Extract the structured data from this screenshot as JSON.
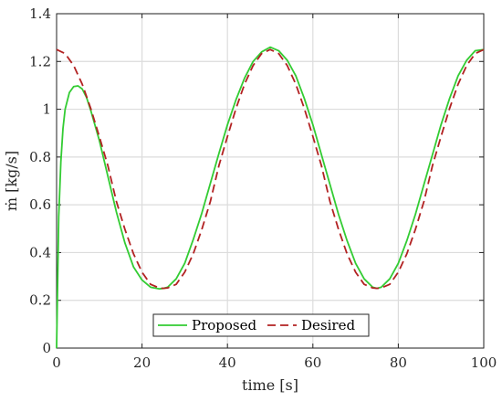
{
  "chart_data": {
    "type": "line",
    "title": "",
    "xlabel": "time [s]",
    "ylabel": "ṁ [kg/s]",
    "xlim": [
      0,
      100
    ],
    "ylim": [
      0,
      1.4
    ],
    "xticks": [
      0,
      20,
      40,
      60,
      80,
      100
    ],
    "yticks": [
      0,
      0.2,
      0.4,
      0.6,
      0.8,
      1,
      1.2,
      1.4
    ],
    "xtick_labels": [
      "0",
      "20",
      "40",
      "60",
      "80",
      "100"
    ],
    "ytick_labels": [
      "0",
      "0.2",
      "0.4",
      "0.6",
      "0.8",
      "1",
      "1.2",
      "1.4"
    ],
    "grid": true,
    "legend_position": "bottom-center",
    "series": [
      {
        "name": "Proposed",
        "color": "#33cc33",
        "dash": "solid",
        "x": [
          0,
          0.5,
          1,
          1.5,
          2,
          3,
          4,
          5,
          6,
          7,
          8,
          10,
          12,
          14,
          16,
          18,
          20,
          22,
          24,
          25,
          26,
          28,
          30,
          32,
          34,
          36,
          38,
          40,
          42,
          44,
          46,
          48,
          50,
          52,
          54,
          56,
          58,
          60,
          62,
          64,
          66,
          68,
          70,
          72,
          74,
          75,
          76,
          78,
          80,
          82,
          84,
          86,
          88,
          90,
          92,
          94,
          96,
          98,
          100
        ],
        "values": [
          0,
          0.55,
          0.78,
          0.92,
          1.0,
          1.07,
          1.095,
          1.098,
          1.085,
          1.05,
          0.995,
          0.87,
          0.72,
          0.57,
          0.44,
          0.34,
          0.285,
          0.255,
          0.248,
          0.25,
          0.255,
          0.29,
          0.355,
          0.455,
          0.565,
          0.69,
          0.815,
          0.935,
          1.04,
          1.13,
          1.2,
          1.24,
          1.26,
          1.245,
          1.205,
          1.14,
          1.045,
          0.935,
          0.81,
          0.685,
          0.56,
          0.45,
          0.355,
          0.29,
          0.255,
          0.25,
          0.255,
          0.29,
          0.355,
          0.45,
          0.56,
          0.685,
          0.81,
          0.935,
          1.045,
          1.14,
          1.205,
          1.245,
          1.25
        ]
      },
      {
        "name": "Desired",
        "color": "#b22222",
        "dash": "dashed",
        "x": [
          0,
          2,
          4,
          6,
          8,
          10,
          12,
          14,
          16,
          18,
          20,
          22,
          24,
          25,
          26,
          28,
          30,
          32,
          34,
          36,
          38,
          40,
          42,
          44,
          46,
          48,
          50,
          52,
          54,
          56,
          58,
          60,
          62,
          64,
          66,
          68,
          70,
          72,
          74,
          75,
          76,
          78,
          80,
          82,
          84,
          86,
          88,
          90,
          92,
          94,
          96,
          98,
          100
        ],
        "values": [
          1.25,
          1.233,
          1.183,
          1.105,
          1.003,
          0.886,
          0.764,
          0.614,
          0.497,
          0.395,
          0.318,
          0.267,
          0.252,
          0.25,
          0.252,
          0.267,
          0.318,
          0.395,
          0.497,
          0.614,
          0.764,
          0.886,
          1.003,
          1.105,
          1.183,
          1.233,
          1.25,
          1.233,
          1.183,
          1.105,
          1.003,
          0.886,
          0.764,
          0.614,
          0.497,
          0.395,
          0.318,
          0.267,
          0.252,
          0.25,
          0.252,
          0.267,
          0.318,
          0.395,
          0.497,
          0.614,
          0.764,
          0.886,
          1.003,
          1.105,
          1.183,
          1.233,
          1.25
        ]
      }
    ]
  }
}
